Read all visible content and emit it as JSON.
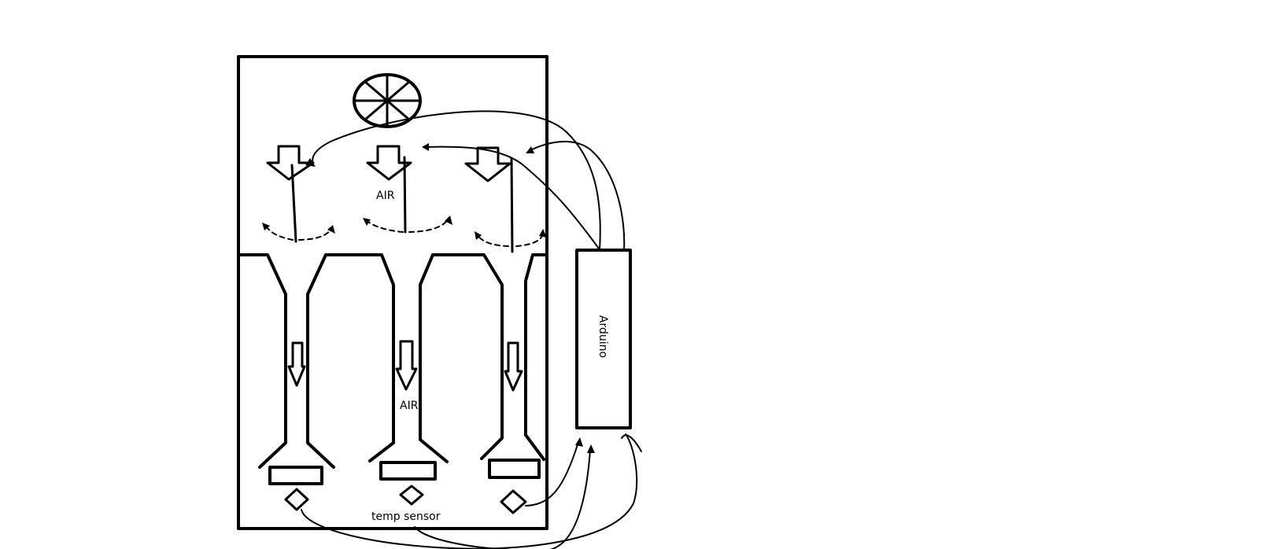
{
  "labels": {
    "air_top": "AIR",
    "air_bottom": "AIR",
    "temp_sensor": "temp sensor",
    "controller": "Arduino"
  },
  "colors": {
    "ink": "#000000",
    "background": "#ffffff"
  },
  "icons": [
    "fan-icon",
    "down-arrow-icon",
    "diamond-sensor-icon"
  ]
}
